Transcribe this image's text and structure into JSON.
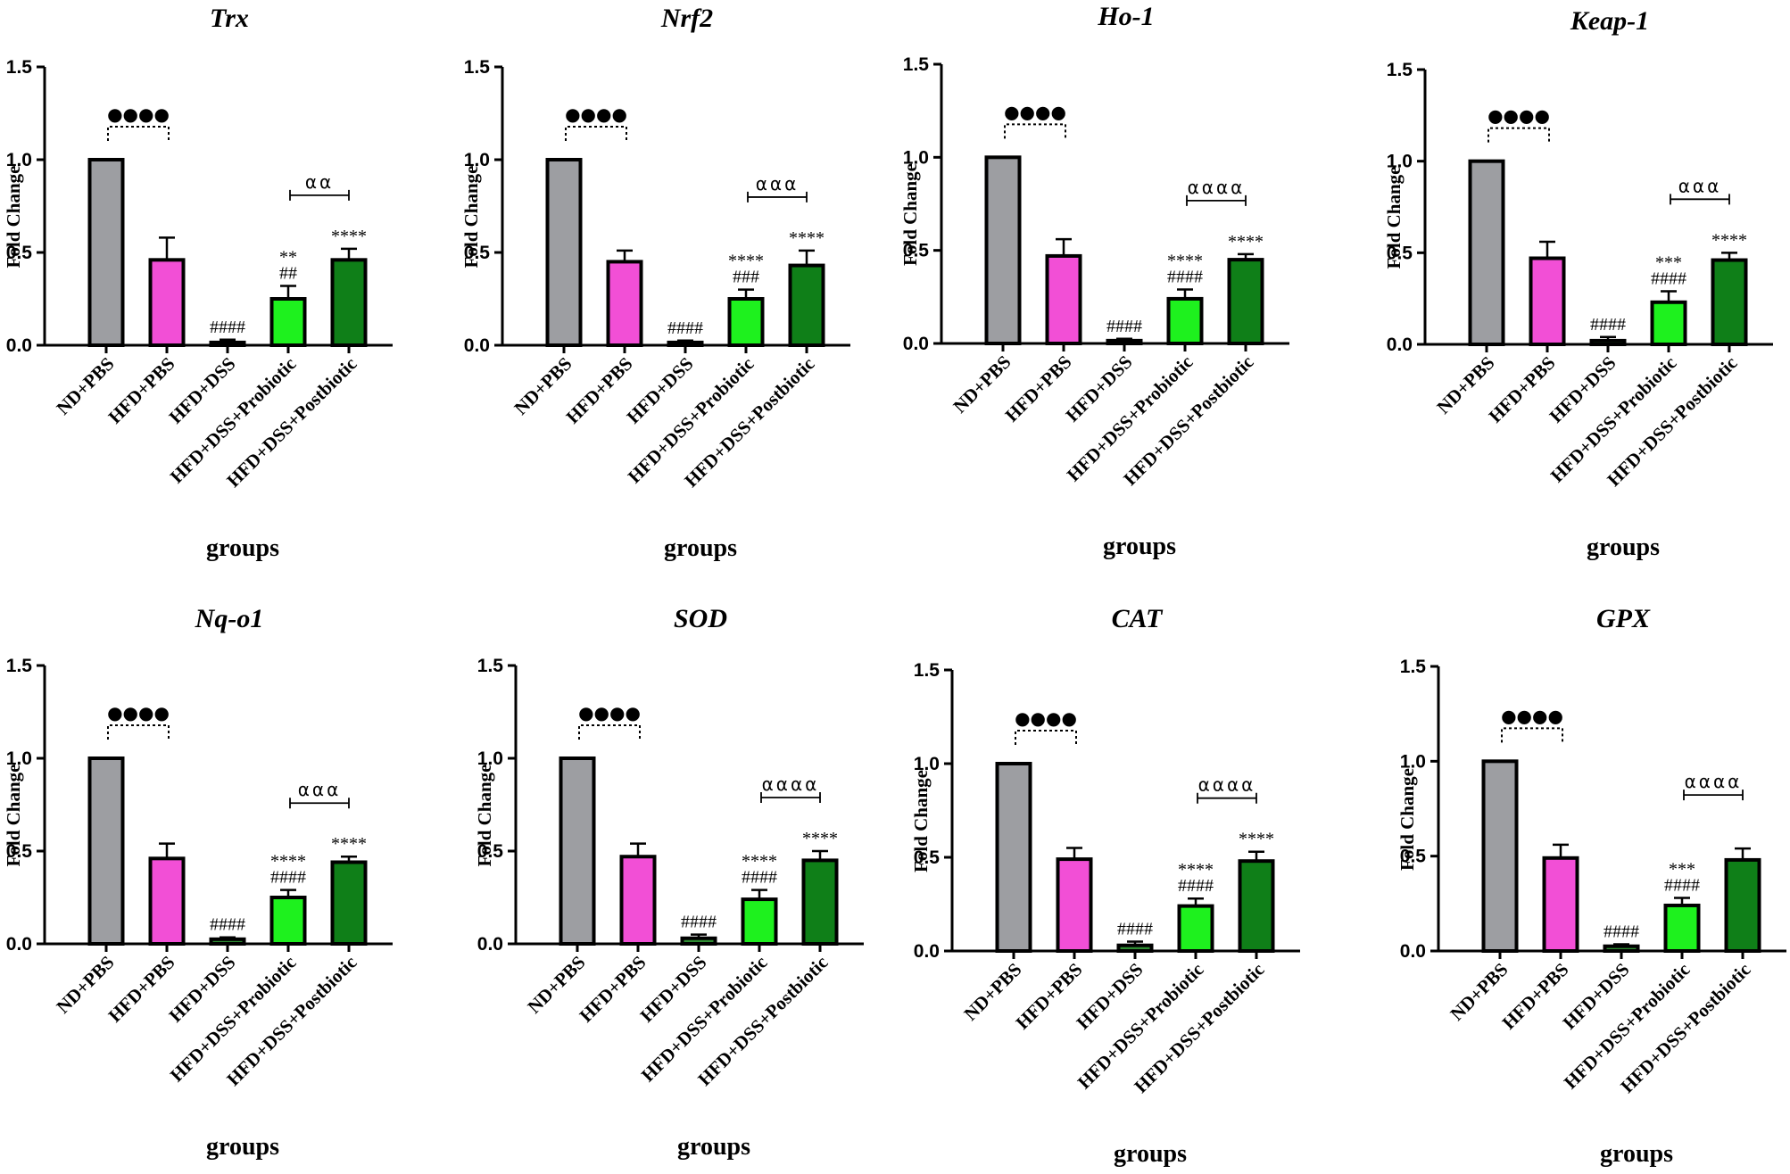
{
  "figure": {
    "colors": {
      "ND+PBS": "#9d9ea2",
      "HFD+PBS": "#f24fd6",
      "HFD+DSS": "#2f8d33",
      "HFD+DSS+Probiotic": "#1ef11e",
      "HFD+DSS+Postbiotic": "#0f7f18",
      "axis": "#000000"
    }
  },
  "chart_data": [
    {
      "type": "bar",
      "title": "Trx",
      "xlabel": "groups",
      "ylabel": "Fold Change",
      "ylim": [
        0,
        1.5
      ],
      "yticks": [
        "0.0",
        "0.5",
        "1.0",
        "1.5"
      ],
      "grid": false,
      "categories": [
        "ND+PBS",
        "HFD+PBS",
        "HFD+DSS",
        "HFD+DSS+Probiotic",
        "HFD+DSS+Postbiotic"
      ],
      "values": [
        1.0,
        0.46,
        0.015,
        0.25,
        0.46
      ],
      "errors": [
        0,
        0.12,
        0.015,
        0.07,
        0.06
      ],
      "annotations": [
        "",
        "",
        "####",
        "**\n##",
        "****"
      ],
      "bracket_dotted": "●●●●",
      "bracket_solid": "αα"
    },
    {
      "type": "bar",
      "title": "Nrf2",
      "xlabel": "groups",
      "ylabel": "Fold Change",
      "ylim": [
        0,
        1.5
      ],
      "yticks": [
        "0.0",
        "0.5",
        "1.0",
        "1.5"
      ],
      "grid": false,
      "categories": [
        "ND+PBS",
        "HFD+PBS",
        "HFD+DSS",
        "HFD+DSS+Probiotic",
        "HFD+DSS+Postbiotic"
      ],
      "values": [
        1.0,
        0.45,
        0.015,
        0.25,
        0.43
      ],
      "errors": [
        0,
        0.06,
        0.01,
        0.05,
        0.08
      ],
      "annotations": [
        "",
        "",
        "####",
        "****\n###",
        "****"
      ],
      "bracket_dotted": "●●●●",
      "bracket_solid": "ααα"
    },
    {
      "type": "bar",
      "title": "Ho-1",
      "xlabel": "groups",
      "ylabel": "Fold Change",
      "ylim": [
        0,
        1.5
      ],
      "yticks": [
        "0.0",
        "0.5",
        "1.0",
        "1.5"
      ],
      "grid": false,
      "categories": [
        "ND+PBS",
        "HFD+PBS",
        "HFD+DSS",
        "HFD+DSS+Probiotic",
        "HFD+DSS+Postbiotic"
      ],
      "values": [
        1.0,
        0.47,
        0.015,
        0.24,
        0.45
      ],
      "errors": [
        0,
        0.09,
        0.01,
        0.05,
        0.03
      ],
      "annotations": [
        "",
        "",
        "####",
        "****\n####",
        "****"
      ],
      "bracket_dotted": "●●●●",
      "bracket_solid": "αααα"
    },
    {
      "type": "bar",
      "title": "Keap-1",
      "xlabel": "groups",
      "ylabel": "Fold Change",
      "ylim": [
        0,
        1.5
      ],
      "yticks": [
        "0.0",
        "0.5",
        "1.0",
        "1.5"
      ],
      "grid": false,
      "categories": [
        "ND+PBS",
        "HFD+PBS",
        "HFD+DSS",
        "HFD+DSS+Probiotic",
        "HFD+DSS+Postbiotic"
      ],
      "values": [
        1.0,
        0.47,
        0.02,
        0.23,
        0.46
      ],
      "errors": [
        0,
        0.09,
        0.02,
        0.06,
        0.04
      ],
      "annotations": [
        "",
        "",
        "####",
        "***\n####",
        "****"
      ],
      "bracket_dotted": "●●●●",
      "bracket_solid": "ααα"
    },
    {
      "type": "bar",
      "title": "Nq-o1",
      "xlabel": "groups",
      "ylabel": "Fold Change",
      "ylim": [
        0,
        1.5
      ],
      "yticks": [
        "0.0",
        "0.5",
        "1.0",
        "1.5"
      ],
      "grid": false,
      "categories": [
        "ND+PBS",
        "HFD+PBS",
        "HFD+DSS",
        "HFD+DSS+Probiotic",
        "HFD+DSS+Postbiotic"
      ],
      "values": [
        1.0,
        0.46,
        0.025,
        0.25,
        0.44
      ],
      "errors": [
        0,
        0.08,
        0.01,
        0.04,
        0.03
      ],
      "annotations": [
        "",
        "",
        "####",
        "****\n####",
        "****"
      ],
      "bracket_dotted": "●●●●",
      "bracket_solid": "ααα"
    },
    {
      "type": "bar",
      "title": "SOD",
      "xlabel": "groups",
      "ylabel": "Fold Change",
      "ylim": [
        0,
        1.5
      ],
      "yticks": [
        "0.0",
        "0.5",
        "1.0",
        "1.5"
      ],
      "grid": false,
      "categories": [
        "ND+PBS",
        "HFD+PBS",
        "HFD+DSS",
        "HFD+DSS+Probiotic",
        "HFD+DSS+Postbiotic"
      ],
      "values": [
        1.0,
        0.47,
        0.03,
        0.24,
        0.45
      ],
      "errors": [
        0,
        0.07,
        0.02,
        0.05,
        0.05
      ],
      "annotations": [
        "",
        "",
        "####",
        "****\n####",
        "****"
      ],
      "bracket_dotted": "●●●●",
      "bracket_solid": "αααα"
    },
    {
      "type": "bar",
      "title": "CAT",
      "xlabel": "groups",
      "ylabel": "Fold Change",
      "ylim": [
        0,
        1.5
      ],
      "yticks": [
        "0.0",
        "0.5",
        "1.0",
        "1.5"
      ],
      "grid": false,
      "categories": [
        "ND+PBS",
        "HFD+PBS",
        "HFD+DSS",
        "HFD+DSS+Probiotic",
        "HFD+DSS+Postbiotic"
      ],
      "values": [
        1.0,
        0.49,
        0.03,
        0.24,
        0.48
      ],
      "errors": [
        0,
        0.06,
        0.02,
        0.04,
        0.05
      ],
      "annotations": [
        "",
        "",
        "####",
        "****\n####",
        "****"
      ],
      "bracket_dotted": "●●●●",
      "bracket_solid": "αααα"
    },
    {
      "type": "bar",
      "title": "GPX",
      "xlabel": "groups",
      "ylabel": "Fold Change",
      "ylim": [
        0,
        1.5
      ],
      "yticks": [
        "0.0",
        "0.5",
        "1.0",
        "1.5"
      ],
      "grid": false,
      "categories": [
        "ND+PBS",
        "HFD+PBS",
        "HFD+DSS",
        "HFD+DSS+Probiotic",
        "HFD+DSS+Postbiotic"
      ],
      "values": [
        1.0,
        0.49,
        0.025,
        0.24,
        0.48
      ],
      "errors": [
        0,
        0.07,
        0.01,
        0.04,
        0.06
      ],
      "annotations": [
        "",
        "",
        "####",
        "***\n####",
        ""
      ],
      "bracket_dotted": "●●●●",
      "bracket_solid": "αααα"
    }
  ]
}
